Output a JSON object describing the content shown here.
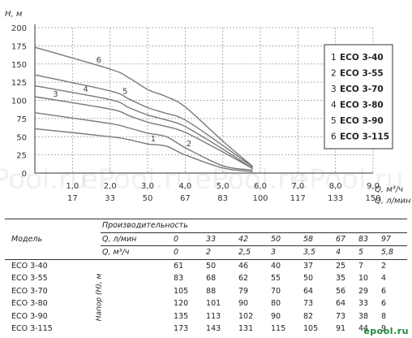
{
  "chart_data": {
    "type": "line",
    "ylabel": "H, м",
    "xlabel_m3": "Q, м³/ч",
    "xlabel_l": "Q, л/мин",
    "y_ticks": [
      0,
      25,
      50,
      75,
      100,
      125,
      150,
      175,
      200
    ],
    "ylim": [
      0,
      200
    ],
    "xlim": [
      0,
      9
    ],
    "x_ticks_m3": [
      "1,0",
      "2,0",
      "3,0",
      "4,0",
      "5,0",
      "6,0",
      "7,0",
      "8,0",
      "9,0"
    ],
    "x_ticks_l": [
      "17",
      "33",
      "50",
      "67",
      "83",
      "100",
      "117",
      "133",
      "150"
    ],
    "grid": true,
    "legend_position": "right",
    "series": [
      {
        "name": "ECO 3-40",
        "num": "1",
        "x": [
          0,
          2,
          2.5,
          3,
          3.5,
          4,
          5,
          5.8
        ],
        "y": [
          61,
          50,
          46,
          40,
          37,
          25,
          7,
          2
        ]
      },
      {
        "name": "ECO 3-55",
        "num": "2",
        "x": [
          0,
          2,
          2.5,
          3,
          3.5,
          4,
          5,
          5.8
        ],
        "y": [
          83,
          68,
          62,
          55,
          50,
          35,
          10,
          4
        ]
      },
      {
        "name": "ECO 3-70",
        "num": "3",
        "x": [
          0,
          2,
          2.5,
          3,
          3.5,
          4,
          5,
          5.8
        ],
        "y": [
          105,
          88,
          79,
          70,
          64,
          56,
          29,
          6
        ]
      },
      {
        "name": "ECO 3-80",
        "num": "4",
        "x": [
          0,
          2,
          2.5,
          3,
          3.5,
          4,
          5,
          5.8
        ],
        "y": [
          120,
          101,
          90,
          80,
          73,
          64,
          33,
          6
        ]
      },
      {
        "name": "ECO 3-90",
        "num": "5",
        "x": [
          0,
          2,
          2.5,
          3,
          3.5,
          4,
          5,
          5.8
        ],
        "y": [
          135,
          113,
          102,
          90,
          82,
          73,
          38,
          8
        ]
      },
      {
        "name": "ECO 3-115",
        "num": "6",
        "x": [
          0,
          2,
          2.5,
          3,
          3.5,
          4,
          5,
          5.8
        ],
        "y": [
          173,
          143,
          131,
          115,
          105,
          91,
          44,
          9
        ]
      }
    ]
  },
  "watermark": "ePool.ru",
  "table": {
    "model_header": "Модель",
    "perf_header": "Производительность",
    "q_l_label": "Q, л/мин",
    "q_m_label": "Q, м³/ч",
    "head_label": "Напор (H), м",
    "q_l": [
      "0",
      "33",
      "42",
      "50",
      "58",
      "67",
      "83",
      "97"
    ],
    "q_m": [
      "0",
      "2",
      "2,5",
      "3",
      "3,5",
      "4",
      "5",
      "5,8"
    ],
    "rows": [
      {
        "model": "ECO 3-40",
        "values": [
          "61",
          "50",
          "46",
          "40",
          "37",
          "25",
          "7",
          "2"
        ]
      },
      {
        "model": "ECO 3-55",
        "values": [
          "83",
          "68",
          "62",
          "55",
          "50",
          "35",
          "10",
          "4"
        ]
      },
      {
        "model": "ECO 3-70",
        "values": [
          "105",
          "88",
          "79",
          "70",
          "64",
          "56",
          "29",
          "6"
        ]
      },
      {
        "model": "ECO 3-80",
        "values": [
          "120",
          "101",
          "90",
          "80",
          "73",
          "64",
          "33",
          "6"
        ]
      },
      {
        "model": "ECO 3-90",
        "values": [
          "135",
          "113",
          "102",
          "90",
          "82",
          "73",
          "38",
          "8"
        ]
      },
      {
        "model": "ECO 3-115",
        "values": [
          "173",
          "143",
          "131",
          "115",
          "105",
          "91",
          "44",
          "9"
        ]
      }
    ]
  },
  "logo": "epool.ru",
  "colors": {
    "grid": "#9a9a9a",
    "curve": "#7a7a7a",
    "legend_border": "#333333",
    "logo": "#1a8a3a"
  }
}
